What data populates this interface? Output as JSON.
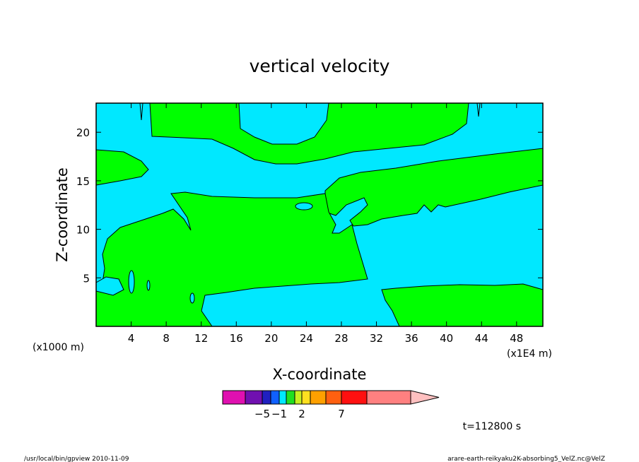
{
  "chart_data": {
    "type": "heatmap",
    "title": "vertical velocity",
    "xlabel": "X-coordinate",
    "ylabel": "Z-coordinate",
    "x_unit_left": "(x1000 m)",
    "x_unit_right": "(x1E4 m)",
    "xlim": [
      0,
      51
    ],
    "ylim": [
      0,
      23
    ],
    "x_ticks": [
      4,
      8,
      12,
      16,
      20,
      24,
      28,
      32,
      36,
      40,
      44,
      48
    ],
    "y_ticks": [
      5,
      10,
      15,
      20
    ],
    "colorbar_labels": [
      {
        "value": -5,
        "text": "−5"
      },
      {
        "value": -1,
        "text": "−1"
      },
      {
        "value": 2,
        "text": "2"
      },
      {
        "value": 7,
        "text": "7"
      }
    ],
    "colorbar_colors": [
      "#e010b0",
      "#7010b0",
      "#2020c0",
      "#1060ff",
      "#00e8ff",
      "#20e020",
      "#c8f020",
      "#ffe020",
      "#ffa000",
      "#ff6010",
      "#ff1010",
      "#ff8080",
      "#ffc0c0"
    ],
    "field_colors": {
      "background": "#00e8ff",
      "positive": "#00ff00"
    },
    "time_label": "t=112800 s"
  },
  "footer": {
    "left": "/usr/local/bin/gpview   2010-11-09",
    "right": "arare-earth-reikyaku2K-absorbing5_VelZ.nc@VelZ"
  }
}
